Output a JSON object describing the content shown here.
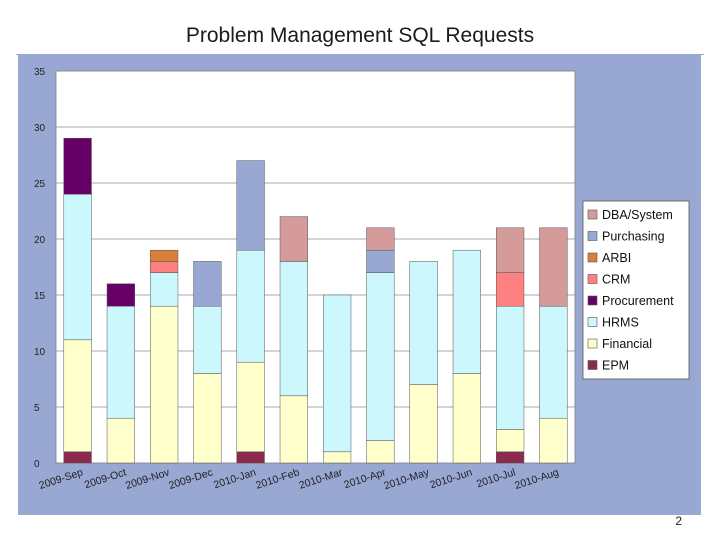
{
  "slide": {
    "title": "Problem Management SQL Requests",
    "page_number": "2"
  },
  "colors": {
    "panel_background": "#99a8d2",
    "plot_background": "#ffffff",
    "gridline": "#8c8c8c",
    "bar_outline": "#555555"
  },
  "chart_data": {
    "type": "bar",
    "stacked": true,
    "title": "",
    "xlabel": "",
    "ylabel": "",
    "ylim": [
      0,
      35
    ],
    "yticks": [
      0,
      5,
      10,
      15,
      20,
      25,
      30,
      35
    ],
    "ytick_labels": [
      "0",
      "5",
      "10",
      "15",
      "20",
      "25",
      "30",
      "35"
    ],
    "grid": true,
    "legend_position": "right",
    "categories": [
      "2009-Sep",
      "2009-Oct",
      "2009-Nov",
      "2009-Dec",
      "2010-Jan",
      "2010-Feb",
      "2010-Mar",
      "2010-Apr",
      "2010-May",
      "2010-Jun",
      "2010-Jul",
      "2010-Aug"
    ],
    "series": [
      {
        "name": "EPM",
        "color": "#8b2a4e",
        "values": [
          1,
          0,
          0,
          0,
          1,
          0,
          0,
          0,
          0,
          0,
          1,
          0
        ]
      },
      {
        "name": "Financial",
        "color": "#ffffcc",
        "values": [
          10,
          4,
          14,
          8,
          8,
          6,
          1,
          2,
          7,
          8,
          2,
          4
        ]
      },
      {
        "name": "HRMS",
        "color": "#ccf7fd",
        "values": [
          13,
          10,
          3,
          6,
          10,
          12,
          14,
          15,
          11,
          11,
          11,
          10
        ]
      },
      {
        "name": "Procurement",
        "color": "#660066",
        "values": [
          5,
          2,
          0,
          0,
          0,
          0,
          0,
          0,
          0,
          0,
          0,
          0
        ]
      },
      {
        "name": "CRM",
        "color": "#ff8080",
        "values": [
          0,
          0,
          1,
          0,
          0,
          0,
          0,
          0,
          0,
          0,
          3,
          0
        ]
      },
      {
        "name": "ARBI",
        "color": "#d97f3a",
        "values": [
          0,
          0,
          1,
          0,
          0,
          0,
          0,
          0,
          0,
          0,
          0,
          0
        ]
      },
      {
        "name": "Purchasing",
        "color": "#99a8d2",
        "values": [
          0,
          0,
          0,
          4,
          8,
          0,
          0,
          2,
          0,
          0,
          0,
          0
        ]
      },
      {
        "name": "DBA/System",
        "color": "#d59b9b",
        "values": [
          0,
          0,
          0,
          0,
          0,
          4,
          0,
          2,
          0,
          0,
          4,
          7
        ]
      }
    ],
    "legend_order": [
      "DBA/System",
      "Purchasing",
      "ARBI",
      "CRM",
      "Procurement",
      "HRMS",
      "Financial",
      "EPM"
    ]
  }
}
